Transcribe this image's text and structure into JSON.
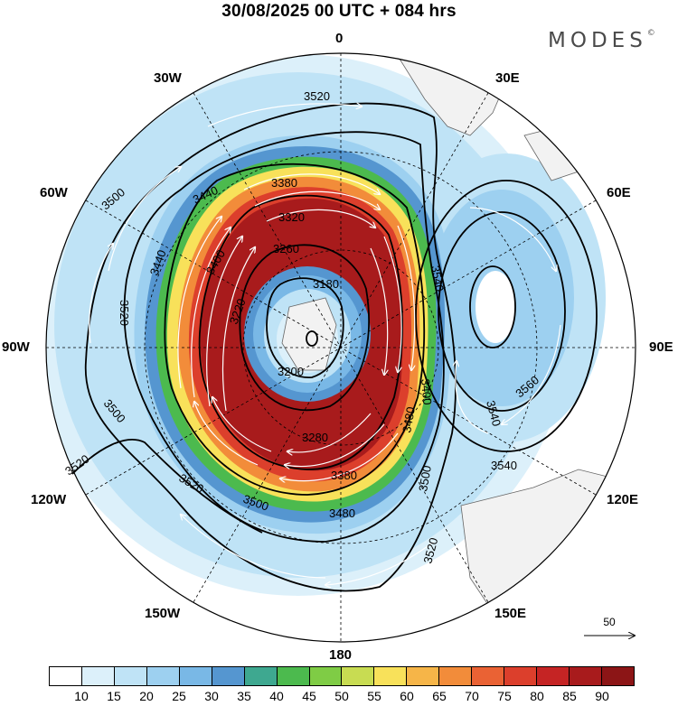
{
  "title": "30/08/2025  00 UTC  + 084 hrs",
  "brand": "MODES",
  "brand_mark": "©",
  "longitude_labels": {
    "l0": "0",
    "l30e": "30E",
    "l60e": "60E",
    "l90e": "90E",
    "l120e": "120E",
    "l150e": "150E",
    "l180": "180",
    "l150w": "150W",
    "l120w": "120W",
    "l90w": "90W",
    "l60w": "60W",
    "l30w": "30W"
  },
  "contour_labels": [
    "3520",
    "3500",
    "3440",
    "3440",
    "3380",
    "3320",
    "3260",
    "3180",
    "3220",
    "3200",
    "3280",
    "3380",
    "3480",
    "3500",
    "3520",
    "3520",
    "3500",
    "3520",
    "3540",
    "3560",
    "3540",
    "3540",
    "3520",
    "3500",
    "3480",
    "3400",
    "3400"
  ],
  "vector_reference": {
    "value": "50"
  },
  "colorbar": {
    "ticks": [
      "10",
      "15",
      "20",
      "25",
      "30",
      "35",
      "40",
      "45",
      "50",
      "55",
      "60",
      "65",
      "70",
      "75",
      "80",
      "85",
      "90"
    ],
    "colors": [
      "#ffffff",
      "#dcf0fa",
      "#bfe3f6",
      "#9dd0f0",
      "#79b8e6",
      "#5596d0",
      "#3ea890",
      "#4cba4e",
      "#7fcc45",
      "#c8dc52",
      "#f8e15a",
      "#f6b548",
      "#f28c3a",
      "#ea6234",
      "#dc3f2c",
      "#c52424",
      "#a81b1c",
      "#8c1516"
    ]
  }
}
